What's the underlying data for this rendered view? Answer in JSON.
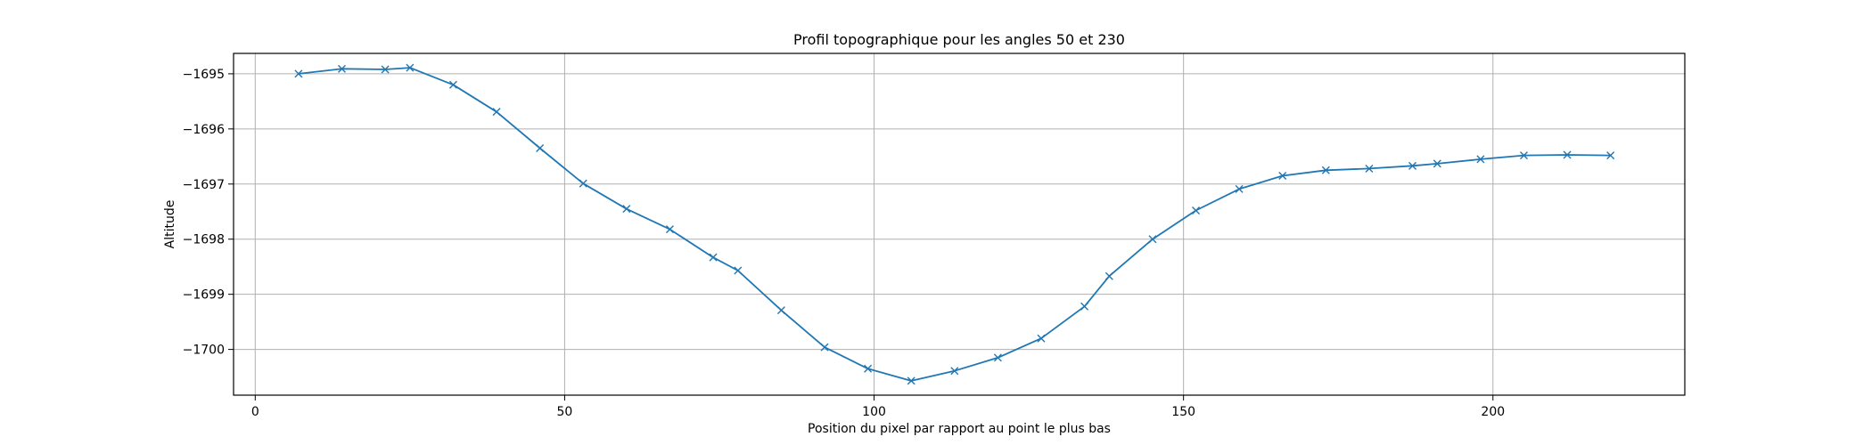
{
  "chart_data": {
    "type": "line",
    "title": "Profil topographique pour les angles 50 et 230",
    "xlabel": "Position du pixel par rapport au point le plus bas",
    "ylabel": "Altitude",
    "xlim": [
      -3.5,
      231
    ],
    "ylim": [
      -1700.83,
      -1694.63
    ],
    "xticks": [
      0,
      50,
      100,
      150,
      200
    ],
    "yticks": [
      -1700,
      -1699,
      -1698,
      -1697,
      -1696,
      -1695
    ],
    "xtick_labels": [
      "0",
      "50",
      "100",
      "150",
      "200"
    ],
    "ytick_labels": [
      "−1700",
      "−1699",
      "−1698",
      "−1697",
      "−1696",
      "−1695"
    ],
    "grid": true,
    "marker": "x",
    "series": [
      {
        "color": "#1f77b4",
        "x": [
          7,
          14,
          21,
          25,
          32,
          39,
          46,
          53,
          60,
          67,
          74,
          78,
          85,
          92,
          99,
          106,
          113,
          120,
          127,
          134,
          138,
          145,
          152,
          159,
          166,
          173,
          180,
          187,
          191,
          198,
          205,
          212,
          219
        ],
        "y": [
          -1695.0,
          -1694.91,
          -1694.92,
          -1694.89,
          -1695.2,
          -1695.69,
          -1696.35,
          -1696.99,
          -1697.45,
          -1697.82,
          -1698.33,
          -1698.57,
          -1699.29,
          -1699.96,
          -1700.35,
          -1700.57,
          -1700.39,
          -1700.15,
          -1699.8,
          -1699.22,
          -1698.67,
          -1698.0,
          -1697.48,
          -1697.09,
          -1696.85,
          -1696.75,
          -1696.72,
          -1696.67,
          -1696.63,
          -1696.55,
          -1696.48,
          -1696.47,
          -1696.48
        ]
      }
    ]
  }
}
